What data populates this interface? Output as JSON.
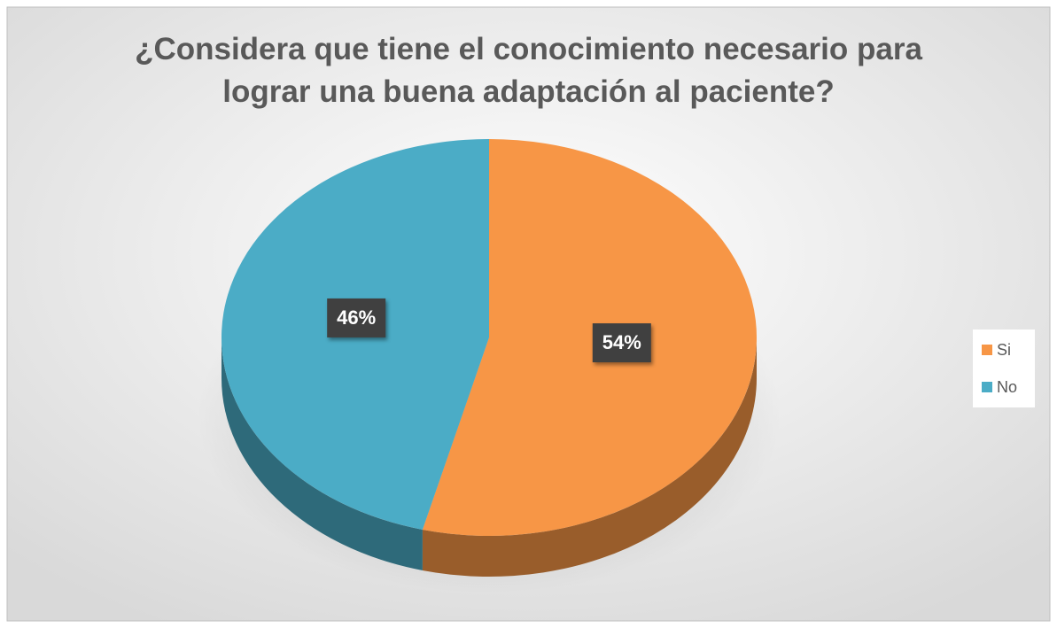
{
  "chart_data": {
    "type": "pie",
    "title": "¿Considera que tiene el conocimiento necesario para lograr una buena adaptación al paciente?",
    "categories": [
      "Si",
      "No"
    ],
    "values": [
      54,
      46
    ],
    "value_labels": [
      "54%",
      "46%"
    ],
    "colors": [
      "#f79646",
      "#4bacc6"
    ],
    "legend": "right"
  }
}
